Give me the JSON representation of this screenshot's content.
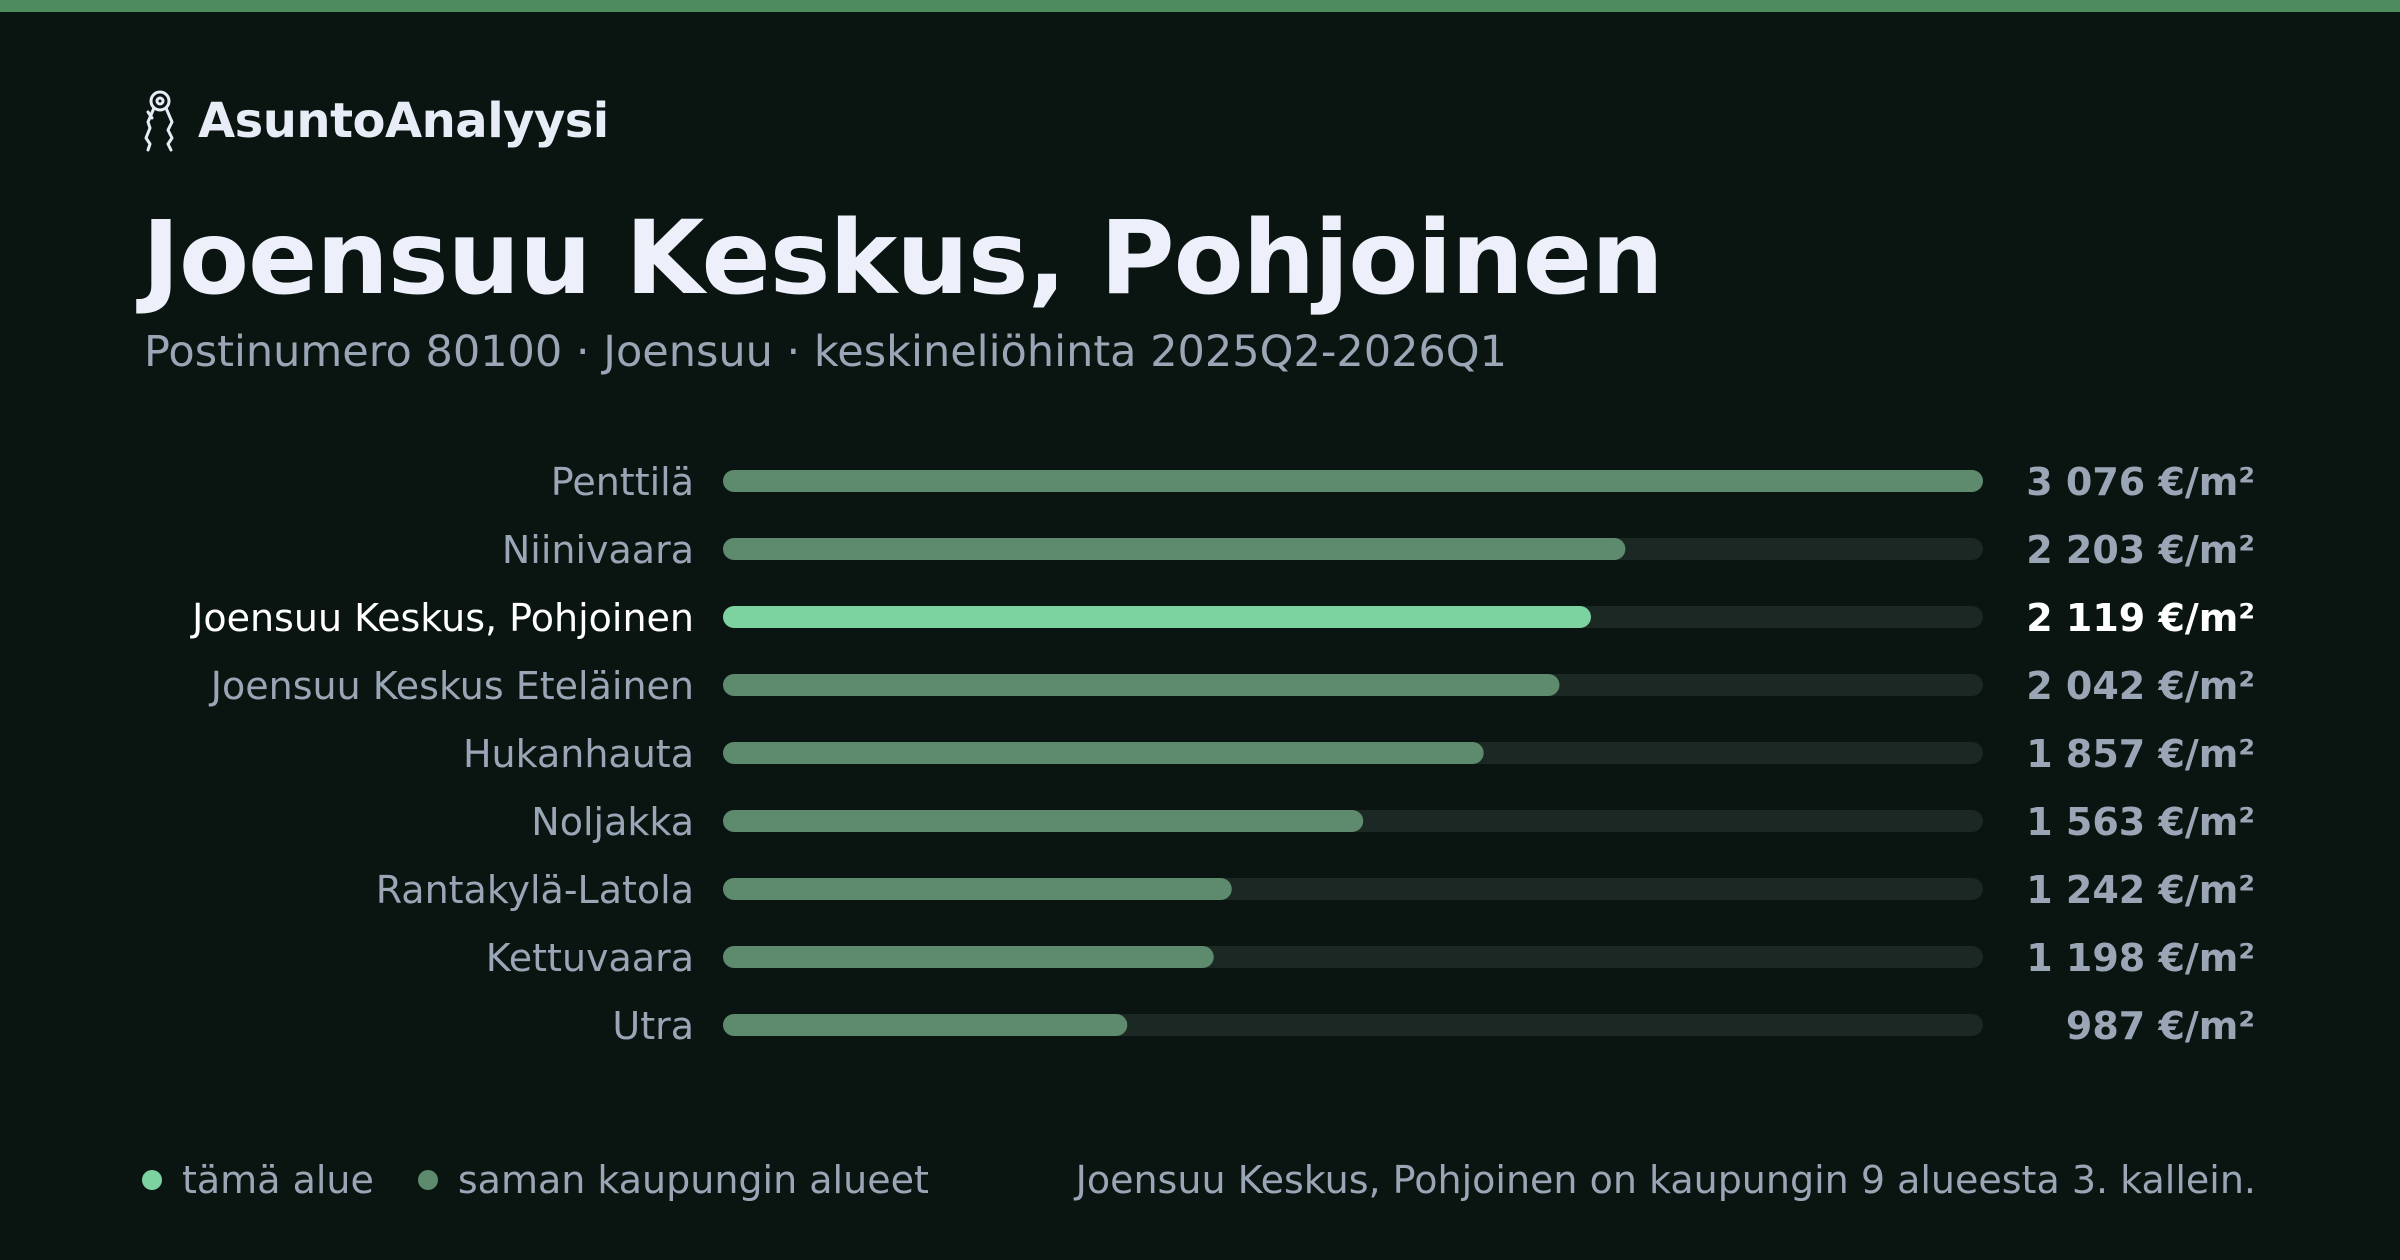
{
  "colors": {
    "accent": "#7dd3a0",
    "bar_other": "#5e8a6e",
    "track": "#1b2823",
    "top_bar": "#4e8c5e",
    "label_other": "#9aa6b6",
    "label_highlight": "#ffffff"
  },
  "brand": {
    "name": "AsuntoAnalyysi",
    "icon": "keys-icon"
  },
  "header": {
    "title": "Joensuu Keskus, Pohjoinen",
    "subtitle": "Postinumero 80100 · Joensuu · keskineliöhinta 2025Q2-2026Q1"
  },
  "chart_data": {
    "type": "bar",
    "orientation": "horizontal",
    "categories": [
      "Penttilä",
      "Niinivaara",
      "Joensuu Keskus, Pohjoinen",
      "Joensuu Keskus Eteläinen",
      "Hukanhauta",
      "Noljakka",
      "Rantakylä-Latola",
      "Kettuvaara",
      "Utra"
    ],
    "values": [
      3076,
      2203,
      2119,
      2042,
      1857,
      1563,
      1242,
      1198,
      987
    ],
    "value_labels": [
      "3 076 €/m²",
      "2 203 €/m²",
      "2 119 €/m²",
      "2 042 €/m²",
      "1 857 €/m²",
      "1 563 €/m²",
      "1 242 €/m²",
      "1 198 €/m²",
      "987 €/m²"
    ],
    "highlight_index": 2,
    "xlim": [
      0,
      3076
    ],
    "grid": false
  },
  "legend": {
    "this_area": "tämä alue",
    "same_city": "saman kaupungin alueet"
  },
  "rank_note": "Joensuu Keskus, Pohjoinen on kaupungin 9 alueesta 3. kallein."
}
